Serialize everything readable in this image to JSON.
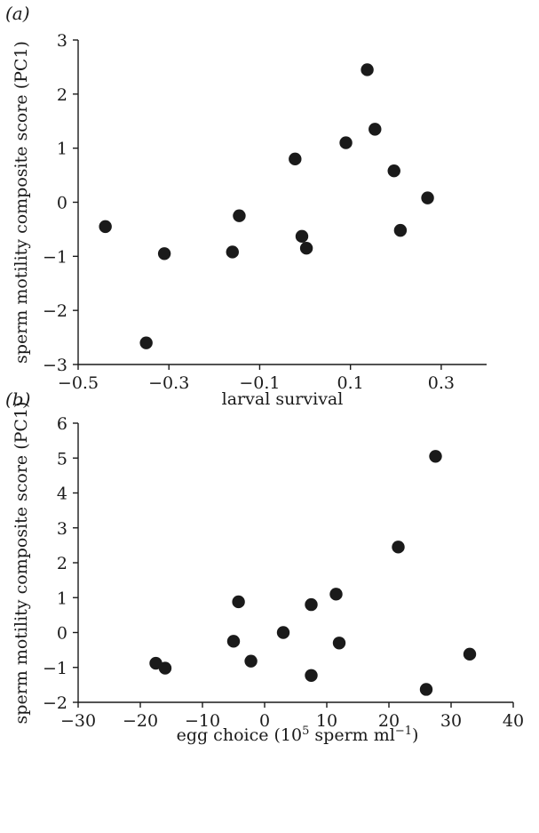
{
  "chart_data": [
    {
      "type": "scatter",
      "panel_label": "(a)",
      "xlabel": "larval survival",
      "ylabel": "sperm motility composite score (PC1)",
      "xlim": [
        -0.5,
        0.4
      ],
      "ylim": [
        -3,
        3
      ],
      "xticks": [
        -0.5,
        -0.3,
        -0.1,
        0.1,
        0.3
      ],
      "xtick_labels": [
        "−0.5",
        "−0.3",
        "−0.1",
        "0.1",
        "0.3"
      ],
      "yticks": [
        -3,
        -2,
        -1,
        0,
        1,
        2,
        3
      ],
      "ytick_labels": [
        "−3",
        "−2",
        "−1",
        "0",
        "1",
        "2",
        "3"
      ],
      "grid": false,
      "series": [
        {
          "x": [
            -0.44,
            -0.35,
            -0.31,
            -0.16,
            -0.145,
            -0.022,
            -0.007,
            0.003,
            0.09,
            0.137,
            0.154,
            0.196,
            0.21,
            0.27
          ],
          "y": [
            -0.45,
            -2.6,
            -0.95,
            -0.92,
            -0.25,
            0.8,
            -0.63,
            -0.85,
            1.1,
            2.45,
            1.35,
            0.58,
            -0.52,
            0.08
          ]
        }
      ]
    },
    {
      "type": "scatter",
      "panel_label": "(b)",
      "xlabel_main": "egg choice (10",
      "xlabel_sup": "5",
      "xlabel_mid": " sperm ml",
      "xlabel_sup2": "−1",
      "xlabel_end": ")",
      "ylabel": "sperm motility composite score (PC1)",
      "xlim": [
        -30,
        40
      ],
      "ylim": [
        -2,
        6
      ],
      "xticks": [
        -30,
        -20,
        -10,
        0,
        10,
        20,
        30,
        40
      ],
      "xtick_labels": [
        "−30",
        "−20",
        "−10",
        "0",
        "10",
        "20",
        "30",
        "40"
      ],
      "yticks": [
        -2,
        -1,
        0,
        1,
        2,
        3,
        4,
        5,
        6
      ],
      "ytick_labels": [
        "−2",
        "−1",
        "0",
        "1",
        "2",
        "3",
        "4",
        "5",
        "6"
      ],
      "grid": false,
      "series": [
        {
          "x": [
            -17.5,
            -16,
            -5,
            -4.2,
            -2.2,
            3,
            7.5,
            7.5,
            11.5,
            12,
            21.5,
            26,
            27.5,
            33
          ],
          "y": [
            -0.88,
            -1.02,
            -0.25,
            0.88,
            -0.82,
            0.0,
            0.8,
            -1.23,
            1.1,
            -0.3,
            2.45,
            -1.63,
            5.05,
            -0.62
          ]
        }
      ]
    }
  ]
}
